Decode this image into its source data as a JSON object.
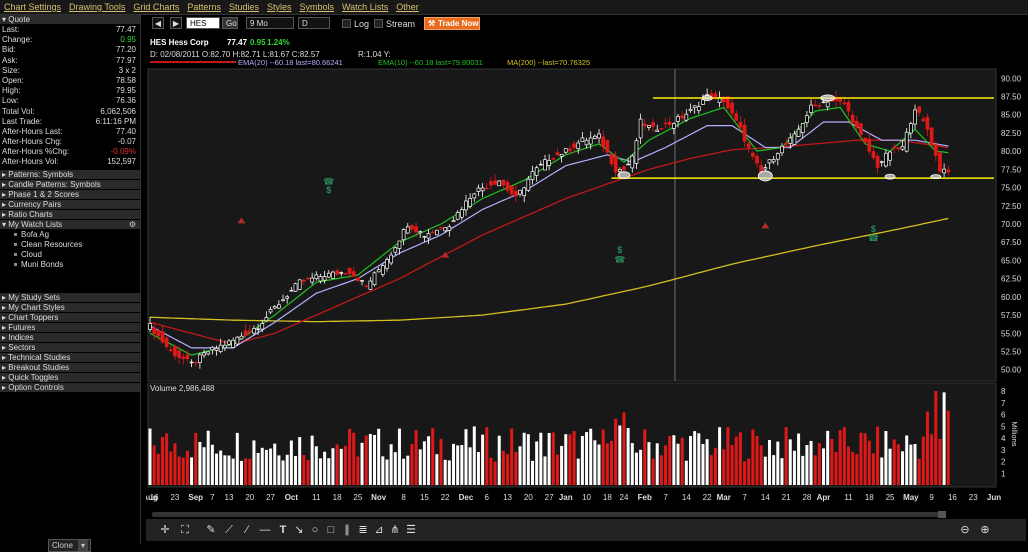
{
  "menu": [
    "Chart Settings",
    "Drawing Tools",
    "Grid Charts",
    "Patterns",
    "Studies",
    "Styles",
    "Symbols",
    "Watch Lists",
    "Other"
  ],
  "quote_header": "Quote",
  "quote": [
    {
      "label": "Last:",
      "value": "77.47",
      "color": "#dddddd"
    },
    {
      "label": "Change:",
      "value": "0.95",
      "color": "#35d335"
    },
    {
      "label": "Bid:",
      "value": "77.20",
      "color": "#dddddd"
    },
    {
      "label": "Ask:",
      "value": "77.97",
      "color": "#dddddd"
    },
    {
      "label": "Size:",
      "value": "3 x 2",
      "color": "#dddddd"
    },
    {
      "label": "Open:",
      "value": "78.58",
      "color": "#dddddd"
    },
    {
      "label": "High:",
      "value": "79.95",
      "color": "#dddddd"
    },
    {
      "label": "Low:",
      "value": "76.36",
      "color": "#dddddd"
    },
    {
      "label": "Total Vol:",
      "value": "6,062,506",
      "color": "#dddddd"
    },
    {
      "label": "Last Trade:",
      "value": "6:11:16 PM",
      "color": "#dddddd"
    },
    {
      "label": "After-Hours Last:",
      "value": "77.40",
      "color": "#dddddd"
    },
    {
      "label": "After-Hours Chg:",
      "value": "-0.07",
      "color": "#dddddd"
    },
    {
      "label": "After-Hours %Chg:",
      "value": "-0.09%",
      "color": "#e03030"
    },
    {
      "label": "After-Hours Vol:",
      "value": "152,597",
      "color": "#dddddd"
    }
  ],
  "sections_a": [
    "Patterns: Symbols",
    "Candle Patterns: Symbols",
    "Phase 1 & 2 Scores",
    "Currency Pairs",
    "Ratio Charts"
  ],
  "watch_header": "My Watch Lists",
  "watch_items": [
    "Bofa Ag",
    "Clean Resources",
    "Cloud",
    "Muni Bonds"
  ],
  "sections_b": [
    "My Study Sets",
    "My Chart Styles",
    "Chart Toppers",
    "Futures",
    "Indices",
    "Sectors",
    "Technical Studies",
    "Breakout Studies",
    "Quick Toggles",
    "Option Controls"
  ],
  "clone_label": "Clone",
  "toolbar": {
    "symbol": "HES",
    "go": "Go",
    "period": "9 Mo",
    "interval": "D",
    "log": "Log",
    "stream": "Stream",
    "trade": "Trade Now"
  },
  "header": {
    "name": "HES Hess Corp",
    "price": "77.47",
    "change": "0.95",
    "pct": "1.24%",
    "ohlc": "D: 02/08/2011 O:82.70 H:82.71 L:81.67 C:82.57",
    "range": "R:1.04 Y:",
    "ind_pre": "EMA(20) --60.18 last=80.66241",
    "ind_ema10": "EMA(10) --60.18 last=79.80031",
    "ind_ma200": "MA(200) --last=70.76325"
  },
  "volume_label": "Volume 2,986,488",
  "millions_label": "Millions",
  "colors": {
    "up": "#ffffff",
    "down": "#e01818",
    "ema10": "#20c020",
    "ema20": "#b0b0ff",
    "ma50": "#c01818",
    "ma200": "#d4c020",
    "resist": "#ffee00"
  },
  "chart_data": {
    "type": "candlestick",
    "price_ticks": [
      "90.00",
      "87.50",
      "85.00",
      "82.50",
      "80.00",
      "77.50",
      "75.00",
      "72.50",
      "70.00",
      "67.50",
      "65.00",
      "62.50",
      "60.00",
      "57.50",
      "55.00",
      "52.50",
      "50.00"
    ],
    "volume_ticks": [
      "8",
      "7",
      "6",
      "5",
      "4",
      "3",
      "2",
      "1"
    ],
    "ylim": [
      49,
      91
    ],
    "vol_max": 8,
    "resistance": 87.3,
    "support": 76.3,
    "x_labels": [
      {
        "t": "Aug",
        "d": 0
      },
      {
        "t": "16",
        "d": 1
      },
      {
        "t": "23",
        "d": 6
      },
      {
        "t": "Sep",
        "d": 11
      },
      {
        "t": "7",
        "d": 15
      },
      {
        "t": "13",
        "d": 19
      },
      {
        "t": "20",
        "d": 24
      },
      {
        "t": "27",
        "d": 29
      },
      {
        "t": "Oct",
        "d": 34
      },
      {
        "t": "11",
        "d": 40
      },
      {
        "t": "18",
        "d": 45
      },
      {
        "t": "25",
        "d": 50
      },
      {
        "t": "Nov",
        "d": 55
      },
      {
        "t": "8",
        "d": 61
      },
      {
        "t": "15",
        "d": 66
      },
      {
        "t": "22",
        "d": 71
      },
      {
        "t": "Dec",
        "d": 76
      },
      {
        "t": "6",
        "d": 81
      },
      {
        "t": "13",
        "d": 86
      },
      {
        "t": "20",
        "d": 91
      },
      {
        "t": "27",
        "d": 96
      },
      {
        "t": "Jan",
        "d": 100
      },
      {
        "t": "10",
        "d": 105
      },
      {
        "t": "18",
        "d": 110
      },
      {
        "t": "24",
        "d": 114
      },
      {
        "t": "Feb",
        "d": 119
      },
      {
        "t": "7",
        "d": 124
      },
      {
        "t": "14",
        "d": 129
      },
      {
        "t": "22",
        "d": 134
      },
      {
        "t": "Mar",
        "d": 138
      },
      {
        "t": "7",
        "d": 143
      },
      {
        "t": "14",
        "d": 148
      },
      {
        "t": "21",
        "d": 153
      },
      {
        "t": "28",
        "d": 158
      },
      {
        "t": "Apr",
        "d": 162
      },
      {
        "t": "11",
        "d": 168
      },
      {
        "t": "18",
        "d": 173
      },
      {
        "t": "25",
        "d": 178
      },
      {
        "t": "May",
        "d": 183
      },
      {
        "t": "9",
        "d": 188
      },
      {
        "t": "16",
        "d": 193
      },
      {
        "t": "23",
        "d": 198
      },
      {
        "t": "Jun",
        "d": 203
      }
    ],
    "close_path": [
      [
        0,
        56
      ],
      [
        5,
        52.5
      ],
      [
        10,
        50.8
      ],
      [
        14,
        52.5
      ],
      [
        20,
        54
      ],
      [
        26,
        56
      ],
      [
        30,
        58.5
      ],
      [
        36,
        62
      ],
      [
        42,
        63
      ],
      [
        48,
        63.5
      ],
      [
        52,
        61.5
      ],
      [
        58,
        66
      ],
      [
        62,
        70
      ],
      [
        66,
        68.5
      ],
      [
        72,
        70
      ],
      [
        78,
        74.5
      ],
      [
        84,
        76
      ],
      [
        88,
        73.5
      ],
      [
        92,
        77
      ],
      [
        96,
        79
      ],
      [
        100,
        80
      ],
      [
        104,
        81.5
      ],
      [
        108,
        82
      ],
      [
        112,
        77.5
      ],
      [
        114,
        77.5
      ],
      [
        116,
        79
      ],
      [
        118,
        84
      ],
      [
        121,
        83
      ],
      [
        126,
        84
      ],
      [
        130,
        85.5
      ],
      [
        134,
        87.5
      ],
      [
        138,
        87
      ],
      [
        142,
        83
      ],
      [
        145,
        79
      ],
      [
        147,
        77
      ],
      [
        151,
        80
      ],
      [
        155,
        82
      ],
      [
        159,
        86
      ],
      [
        163,
        87
      ],
      [
        167,
        86.5
      ],
      [
        171,
        82
      ],
      [
        175,
        78
      ],
      [
        178,
        80
      ],
      [
        181,
        80.5
      ],
      [
        184,
        86
      ],
      [
        187,
        83
      ],
      [
        190,
        77.5
      ],
      [
        192,
        77.47
      ]
    ],
    "ema10_path": [
      [
        0,
        55
      ],
      [
        10,
        52
      ],
      [
        20,
        53.5
      ],
      [
        30,
        57.5
      ],
      [
        40,
        62
      ],
      [
        50,
        63
      ],
      [
        60,
        67.5
      ],
      [
        70,
        70
      ],
      [
        80,
        73.5
      ],
      [
        90,
        76
      ],
      [
        100,
        79.5
      ],
      [
        108,
        81
      ],
      [
        114,
        78.5
      ],
      [
        120,
        81.5
      ],
      [
        130,
        84.5
      ],
      [
        138,
        86
      ],
      [
        146,
        80
      ],
      [
        152,
        80.5
      ],
      [
        160,
        85.5
      ],
      [
        166,
        86
      ],
      [
        172,
        81
      ],
      [
        178,
        80
      ],
      [
        184,
        83
      ],
      [
        189,
        80
      ],
      [
        192,
        79.8
      ]
    ],
    "ema20_path": [
      [
        0,
        56
      ],
      [
        10,
        53
      ],
      [
        20,
        53
      ],
      [
        30,
        56.5
      ],
      [
        40,
        60.5
      ],
      [
        50,
        62.5
      ],
      [
        60,
        66
      ],
      [
        70,
        68.5
      ],
      [
        80,
        72
      ],
      [
        90,
        74.5
      ],
      [
        100,
        78
      ],
      [
        110,
        79.5
      ],
      [
        116,
        78.5
      ],
      [
        124,
        80.5
      ],
      [
        134,
        83.5
      ],
      [
        140,
        83.5
      ],
      [
        148,
        80.5
      ],
      [
        154,
        80.5
      ],
      [
        162,
        84
      ],
      [
        168,
        84
      ],
      [
        176,
        81.5
      ],
      [
        184,
        81.5
      ],
      [
        192,
        80.7
      ]
    ],
    "ma50_path": [
      [
        0,
        56.5
      ],
      [
        10,
        55
      ],
      [
        20,
        53.5
      ],
      [
        30,
        55
      ],
      [
        40,
        57.5
      ],
      [
        50,
        60
      ],
      [
        60,
        62.5
      ],
      [
        70,
        65.5
      ],
      [
        80,
        68.5
      ],
      [
        90,
        71
      ],
      [
        100,
        73.5
      ],
      [
        110,
        75.5
      ],
      [
        120,
        77.5
      ],
      [
        130,
        79
      ],
      [
        140,
        80.2
      ],
      [
        150,
        80.5
      ],
      [
        160,
        81
      ],
      [
        170,
        81.5
      ],
      [
        180,
        81.5
      ],
      [
        192,
        80.5
      ]
    ],
    "ma200_path": [
      [
        0,
        57.2
      ],
      [
        20,
        56.8
      ],
      [
        40,
        56.6
      ],
      [
        60,
        56.8
      ],
      [
        80,
        57.5
      ],
      [
        100,
        59
      ],
      [
        120,
        61.5
      ],
      [
        140,
        64.5
      ],
      [
        160,
        67
      ],
      [
        180,
        69.3
      ],
      [
        192,
        70.76
      ]
    ],
    "markers": [
      {
        "type": "phone",
        "d": 43,
        "y": 75.8,
        "color": "#2a8a5a"
      },
      {
        "type": "dollar",
        "d": 43,
        "y": 74.7,
        "color": "#2a8a5a"
      },
      {
        "type": "up",
        "d": 22,
        "y": 70.5,
        "color": "#b02a2a"
      },
      {
        "type": "up",
        "d": 71,
        "y": 65.8,
        "color": "#b02a2a"
      },
      {
        "type": "up",
        "d": 148,
        "y": 69.8,
        "color": "#b02a2a"
      },
      {
        "type": "dollar",
        "d": 113,
        "y": 66.4,
        "color": "#2a8a5a"
      },
      {
        "type": "phone",
        "d": 113,
        "y": 65.1,
        "color": "#2a8a5a"
      },
      {
        "type": "dollar",
        "d": 174,
        "y": 69.3,
        "color": "#2a8a5a"
      },
      {
        "type": "phone",
        "d": 174,
        "y": 68.1,
        "color": "#2a8a5a"
      }
    ],
    "ellipses": [
      {
        "d": 114,
        "y": 76.7,
        "rx": 6,
        "ry": 3.5
      },
      {
        "d": 134,
        "y": 87.3,
        "rx": 5,
        "ry": 2.5
      },
      {
        "d": 148,
        "y": 76.6,
        "rx": 7,
        "ry": 5
      },
      {
        "d": 163,
        "y": 87.3,
        "rx": 7,
        "ry": 3
      },
      {
        "d": 178,
        "y": 76.5,
        "rx": 5,
        "ry": 2.5
      },
      {
        "d": 189,
        "y": 76.5,
        "rx": 5,
        "ry": 2
      }
    ]
  }
}
